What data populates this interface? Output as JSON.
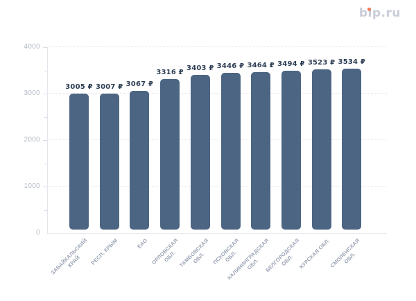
{
  "logo": {
    "text": "bip.ru",
    "text_color": "#c9cdd9",
    "dot_color": "#f0805a"
  },
  "chart_data": {
    "type": "bar",
    "title": "",
    "categories": [
      "ЗАБАЙКАЛЬСКИЙ\nКРАЙ",
      "РЕСП. КРЫМ",
      "ЕАО",
      "ОРЛОВСКАЯ\nОБЛ.",
      "ТАМБОВСКАЯ\nОБЛ.",
      "ПСКОВСКАЯ\nОБЛ.",
      "КАЛИНИНГРАДСКАЯ\nОБЛ.",
      "БЕЛГОРОДСКАЯ\nОБЛ.",
      "КУРСКАЯ ОБЛ.",
      "СМОЛЕНСКАЯ\nОБЛ."
    ],
    "values": [
      3005,
      3007,
      3067,
      3316,
      3403,
      3446,
      3464,
      3494,
      3523,
      3534
    ],
    "value_labels": [
      "3005 ₽",
      "3007 ₽",
      "3067 ₽",
      "3316 ₽",
      "3403 ₽",
      "3446 ₽",
      "3464 ₽",
      "3494 ₽",
      "3523 ₽",
      "3534 ₽"
    ],
    "xlabel": "",
    "ylabel": "",
    "ylim": [
      0,
      4000
    ],
    "yticks_major": [
      0,
      1000,
      2000,
      3000,
      4000
    ],
    "yticks_minor": [
      500,
      1500,
      2500,
      3500
    ],
    "grid": "horizontal dotted lines at major ticks",
    "legend": "none",
    "bar_color": "#4c6583",
    "value_label_color": "#2d3e54",
    "y_label_color": "#b4bac6",
    "x_label_color": "#9aa3b4"
  }
}
